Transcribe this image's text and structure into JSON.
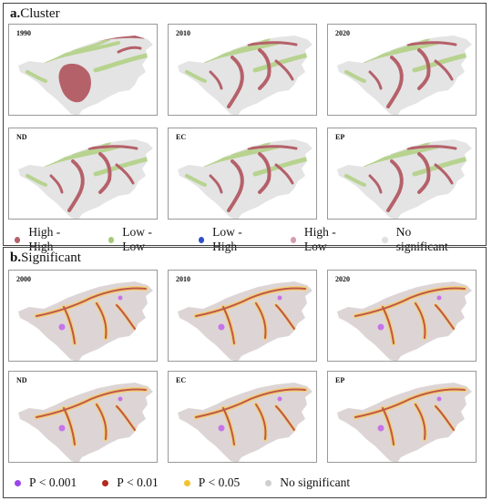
{
  "cluster": {
    "prefix": "a.",
    "title": "Cluster",
    "panels": [
      "1990",
      "2010",
      "2020",
      "ND",
      "EC",
      "EP"
    ],
    "legend": [
      {
        "label": "High - High",
        "color": "#b5616a"
      },
      {
        "label": "Low - Low",
        "color": "#a8c878"
      },
      {
        "label": "Low - High",
        "color": "#2f4fc9"
      },
      {
        "label": "High - Low",
        "color": "#d79bb3"
      },
      {
        "label": "No significant",
        "color": "#e0e0e0"
      }
    ],
    "land_color": "#e4e4e4",
    "colors": [
      "#b5616a",
      "#b7d38f"
    ]
  },
  "significant": {
    "prefix": "b.",
    "title": "Significant",
    "panels": [
      "2000",
      "2010",
      "2020",
      "ND",
      "EC",
      "EP"
    ],
    "legend": [
      {
        "label": "P < 0.001",
        "color": "#9b45e8"
      },
      {
        "label": "P < 0.01",
        "color": "#b02a1e"
      },
      {
        "label": "P < 0.05",
        "color": "#f2c230"
      },
      {
        "label": "No significant",
        "color": "#cfcfcf"
      }
    ],
    "land_color": "#ddd5d5",
    "colors": [
      "#c0564b",
      "#f0d07a",
      "#c873e8"
    ]
  }
}
